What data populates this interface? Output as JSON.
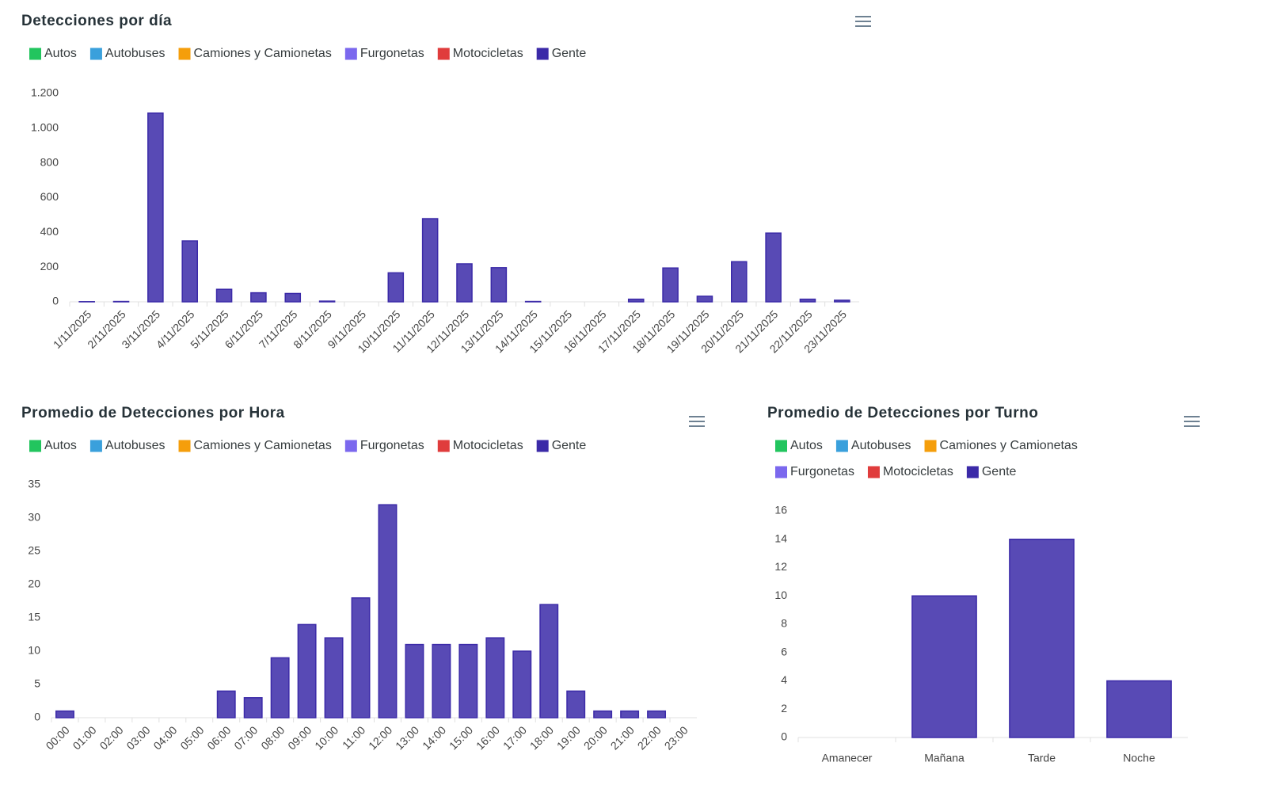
{
  "chart_data": [
    {
      "type": "bar",
      "stacked": true,
      "title": "Detecciones por día",
      "categories": [
        "1/11/2025",
        "2/11/2025",
        "3/11/2025",
        "4/11/2025",
        "5/11/2025",
        "6/11/2025",
        "7/11/2025",
        "8/11/2025",
        "9/11/2025",
        "10/11/2025",
        "11/11/2025",
        "12/11/2025",
        "13/11/2025",
        "14/11/2025",
        "15/11/2025",
        "16/11/2025",
        "17/11/2025",
        "18/11/2025",
        "19/11/2025",
        "20/11/2025",
        "21/11/2025",
        "22/11/2025",
        "23/11/2025"
      ],
      "series": [
        {
          "name": "Autos",
          "color": "#22c55e",
          "values": [
            0,
            0,
            0,
            0,
            0,
            0,
            0,
            0,
            0,
            0,
            0,
            0,
            0,
            0,
            0,
            0,
            0,
            0,
            0,
            0,
            0,
            0,
            0
          ]
        },
        {
          "name": "Autobuses",
          "color": "#3aa0dc",
          "values": [
            0,
            0,
            0,
            0,
            0,
            0,
            0,
            0,
            0,
            0,
            0,
            0,
            0,
            0,
            0,
            0,
            0,
            0,
            0,
            0,
            0,
            0,
            0
          ]
        },
        {
          "name": "Camiones y Camionetas",
          "color": "#f59e0b",
          "values": [
            0,
            0,
            0,
            0,
            0,
            0,
            0,
            0,
            0,
            0,
            0,
            0,
            0,
            0,
            0,
            0,
            0,
            0,
            0,
            0,
            0,
            0,
            0
          ]
        },
        {
          "name": "Furgonetas",
          "color": "#7b68ee",
          "values": [
            0,
            0,
            0,
            0,
            0,
            0,
            0,
            0,
            0,
            0,
            0,
            0,
            0,
            0,
            0,
            0,
            0,
            0,
            0,
            0,
            0,
            0,
            0
          ]
        },
        {
          "name": "Motocicletas",
          "color": "#e03c3c",
          "values": [
            0,
            0,
            0,
            0,
            0,
            0,
            0,
            0,
            0,
            0,
            0,
            0,
            0,
            0,
            0,
            0,
            0,
            0,
            0,
            0,
            0,
            0,
            0
          ]
        },
        {
          "name": "Gente",
          "color": "#3b2aa8",
          "values": [
            1,
            2,
            1087,
            351,
            72,
            52,
            48,
            4,
            0,
            167,
            479,
            219,
            197,
            2,
            0,
            0,
            15,
            195,
            32,
            231,
            396,
            15,
            9
          ]
        }
      ],
      "ylim": [
        0,
        1200
      ],
      "yticks": [
        0,
        200,
        400,
        600,
        800,
        {
          "value": 1000,
          "label": "1.000"
        },
        {
          "value": 1200,
          "label": "1.200"
        }
      ]
    },
    {
      "type": "bar",
      "stacked": true,
      "title": "Promedio de Detecciones por Hora",
      "categories": [
        "00:00",
        "01:00",
        "02:00",
        "03:00",
        "04:00",
        "05:00",
        "06:00",
        "07:00",
        "08:00",
        "09:00",
        "10:00",
        "11:00",
        "12:00",
        "13:00",
        "14:00",
        "15:00",
        "16:00",
        "17:00",
        "18:00",
        "19:00",
        "20:00",
        "21:00",
        "22:00",
        "23:00"
      ],
      "series": [
        {
          "name": "Autos",
          "color": "#22c55e",
          "values": [
            0,
            0,
            0,
            0,
            0,
            0,
            0,
            0,
            0,
            0,
            0,
            0,
            0,
            0,
            0,
            0,
            0,
            0,
            0,
            0,
            0,
            0,
            0,
            0
          ]
        },
        {
          "name": "Autobuses",
          "color": "#3aa0dc",
          "values": [
            0,
            0,
            0,
            0,
            0,
            0,
            0,
            0,
            0,
            0,
            0,
            0,
            0,
            0,
            0,
            0,
            0,
            0,
            0,
            0,
            0,
            0,
            0,
            0
          ]
        },
        {
          "name": "Camiones y Camionetas",
          "color": "#f59e0b",
          "values": [
            0,
            0,
            0,
            0,
            0,
            0,
            0,
            0,
            0,
            0,
            0,
            0,
            0,
            0,
            0,
            0,
            0,
            0,
            0,
            0,
            0,
            0,
            0,
            0
          ]
        },
        {
          "name": "Furgonetas",
          "color": "#7b68ee",
          "values": [
            0,
            0,
            0,
            0,
            0,
            0,
            0,
            0,
            0,
            0,
            0,
            0,
            0,
            0,
            0,
            0,
            0,
            0,
            0,
            0,
            0,
            0,
            0,
            0
          ]
        },
        {
          "name": "Motocicletas",
          "color": "#e03c3c",
          "values": [
            0,
            0,
            0,
            0,
            0,
            0,
            0,
            0,
            0,
            0,
            0,
            0,
            0,
            0,
            0,
            0,
            0,
            0,
            0,
            0,
            0,
            0,
            0,
            0
          ]
        },
        {
          "name": "Gente",
          "color": "#3b2aa8",
          "values": [
            1,
            0,
            0,
            0,
            0,
            0,
            4,
            3,
            9,
            14,
            12,
            18,
            32,
            11,
            11,
            11,
            12,
            10,
            17,
            4,
            1,
            1,
            1,
            0
          ]
        }
      ],
      "ylim": [
        0,
        35
      ],
      "yticks": [
        0,
        5,
        10,
        15,
        20,
        25,
        30,
        35
      ]
    },
    {
      "type": "bar",
      "stacked": true,
      "title": "Promedio de Detecciones por Turno",
      "categories": [
        "Amanecer",
        "Mañana",
        "Tarde",
        "Noche"
      ],
      "series": [
        {
          "name": "Autos",
          "color": "#22c55e",
          "values": [
            0,
            0,
            0,
            0
          ]
        },
        {
          "name": "Autobuses",
          "color": "#3aa0dc",
          "values": [
            0,
            0,
            0,
            0
          ]
        },
        {
          "name": "Camiones y Camionetas",
          "color": "#f59e0b",
          "values": [
            0,
            0,
            0,
            0
          ]
        },
        {
          "name": "Furgonetas",
          "color": "#7b68ee",
          "values": [
            0,
            0,
            0,
            0
          ]
        },
        {
          "name": "Motocicletas",
          "color": "#e03c3c",
          "values": [
            0,
            0,
            0,
            0
          ]
        },
        {
          "name": "Gente",
          "color": "#3b2aa8",
          "values": [
            0,
            10,
            14,
            4
          ]
        }
      ],
      "ylim": [
        0,
        16
      ],
      "yticks": [
        0,
        2,
        4,
        6,
        8,
        10,
        12,
        14,
        16
      ]
    }
  ]
}
